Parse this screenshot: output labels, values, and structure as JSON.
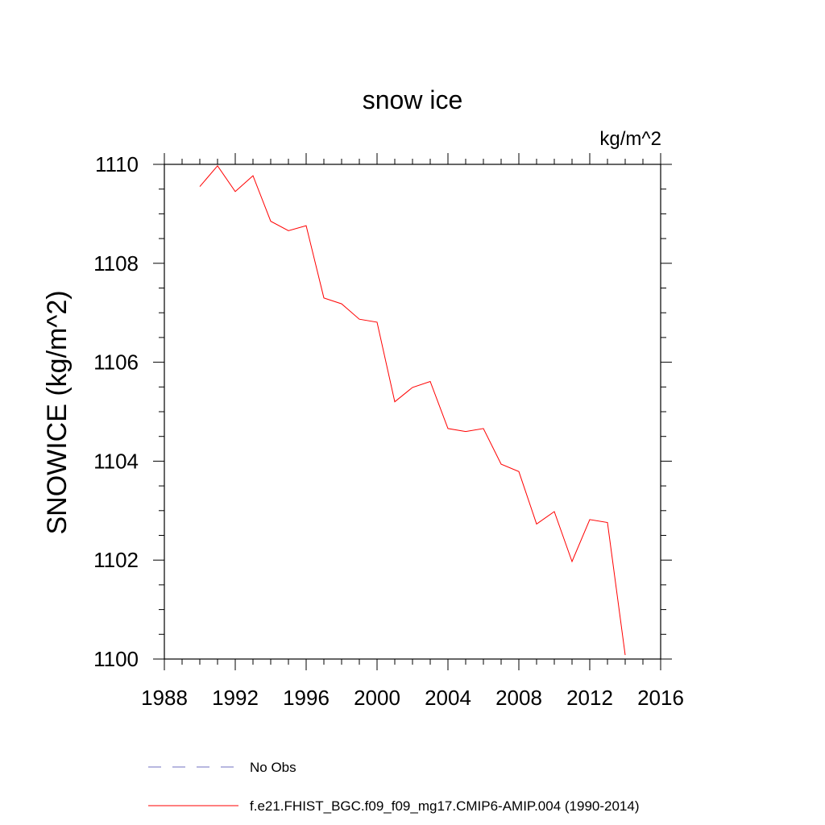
{
  "chart_data": {
    "type": "line",
    "title": "snow ice",
    "units_label": "kg/m^2",
    "ylabel": "SNOWICE  (kg/m^2)",
    "xlabel": "",
    "xlim": [
      1988,
      2016
    ],
    "ylim": [
      1100,
      1110
    ],
    "x_ticks": [
      1988,
      1992,
      1996,
      2000,
      2004,
      2008,
      2012,
      2016
    ],
    "y_ticks": [
      1100,
      1102,
      1104,
      1106,
      1108,
      1110
    ],
    "x_tick_labels": [
      "1988",
      "1992",
      "1996",
      "2000",
      "2004",
      "2008",
      "2012",
      "2016"
    ],
    "y_tick_labels": [
      "1100",
      "1102",
      "1104",
      "1106",
      "1108",
      "1110"
    ],
    "grid": false,
    "legend_position": "bottom",
    "series": [
      {
        "name": "f.e21.FHIST_BGC.f09_f09_mg17.CMIP6-AMIP.004 (1990-2014)",
        "color": "#ff0000",
        "style": "solid",
        "x": [
          1990,
          1991,
          1992,
          1993,
          1994,
          1995,
          1996,
          1997,
          1998,
          1999,
          2000,
          2001,
          2002,
          2003,
          2004,
          2005,
          2006,
          2007,
          2008,
          2009,
          2010,
          2011,
          2012,
          2013,
          2014
        ],
        "y": [
          1109.55,
          1109.97,
          1109.45,
          1109.77,
          1108.85,
          1108.66,
          1108.76,
          1107.3,
          1107.18,
          1106.87,
          1106.81,
          1105.2,
          1105.49,
          1105.61,
          1104.66,
          1104.6,
          1104.66,
          1103.94,
          1103.79,
          1102.73,
          1102.98,
          1101.97,
          1102.82,
          1102.76,
          1100.08
        ]
      }
    ],
    "legend": [
      {
        "label": "No Obs",
        "color": "#7070c0",
        "style": "dashed"
      },
      {
        "label": "f.e21.FHIST_BGC.f09_f09_mg17.CMIP6-AMIP.004 (1990-2014)",
        "color": "#ff0000",
        "style": "solid"
      }
    ]
  }
}
